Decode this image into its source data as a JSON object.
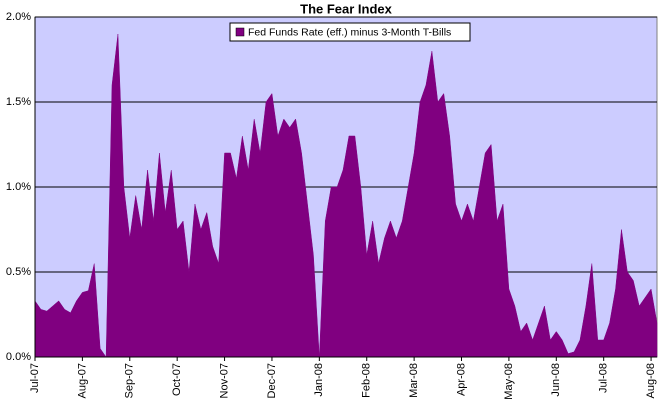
{
  "chart_data": {
    "type": "area",
    "title": "The Fear Index",
    "categories": [
      "Jul-07",
      null,
      null,
      null,
      null,
      null,
      null,
      null,
      "Aug-07",
      null,
      null,
      null,
      null,
      null,
      null,
      null,
      "Sep-07",
      null,
      null,
      null,
      null,
      null,
      null,
      null,
      "Oct-07",
      null,
      null,
      null,
      null,
      null,
      null,
      null,
      "Nov-07",
      null,
      null,
      null,
      null,
      null,
      null,
      null,
      "Dec-07",
      null,
      null,
      null,
      null,
      null,
      null,
      null,
      "Jan-08",
      null,
      null,
      null,
      null,
      null,
      null,
      null,
      "Feb-08",
      null,
      null,
      null,
      null,
      null,
      null,
      null,
      "Mar-08",
      null,
      null,
      null,
      null,
      null,
      null,
      null,
      "Apr-08",
      null,
      null,
      null,
      null,
      null,
      null,
      null,
      "May-08",
      null,
      null,
      null,
      null,
      null,
      null,
      null,
      "Jun-08",
      null,
      null,
      null,
      null,
      null,
      null,
      null,
      "Jul-08",
      null,
      null,
      null,
      null,
      null,
      null,
      null,
      "Aug-08",
      null
    ],
    "series": [
      {
        "name": "Fed Funds Rate (eff.) minus 3-Month T-Bills",
        "color": "#800080",
        "values": [
          0.33,
          0.28,
          0.27,
          0.3,
          0.33,
          0.28,
          0.26,
          0.33,
          0.38,
          0.39,
          0.55,
          0.05,
          0.0,
          1.6,
          1.9,
          1.0,
          0.7,
          0.95,
          0.75,
          1.1,
          0.8,
          1.2,
          0.85,
          1.1,
          0.75,
          0.8,
          0.5,
          0.9,
          0.75,
          0.85,
          0.65,
          0.55,
          1.2,
          1.2,
          1.05,
          1.3,
          1.1,
          1.4,
          1.2,
          1.5,
          1.55,
          1.3,
          1.4,
          1.35,
          1.4,
          1.2,
          0.9,
          0.6,
          0.0,
          0.8,
          1.0,
          1.0,
          1.1,
          1.3,
          1.3,
          1.0,
          0.6,
          0.8,
          0.55,
          0.7,
          0.8,
          0.7,
          0.8,
          1.0,
          1.2,
          1.5,
          1.6,
          1.8,
          1.5,
          1.55,
          1.3,
          0.9,
          0.8,
          0.9,
          0.8,
          1.0,
          1.2,
          1.25,
          0.8,
          0.9,
          0.4,
          0.3,
          0.15,
          0.2,
          0.1,
          0.2,
          0.3,
          0.1,
          0.15,
          0.1,
          0.02,
          0.03,
          0.1,
          0.3,
          0.55,
          0.1,
          0.1,
          0.2,
          0.4,
          0.75,
          0.5,
          0.45,
          0.3,
          0.35,
          0.4,
          0.2
        ]
      }
    ],
    "ylim": [
      0,
      2
    ],
    "yticks": [
      {
        "value": 0,
        "label": "0.0%"
      },
      {
        "value": 0.5,
        "label": "0.5%"
      },
      {
        "value": 1,
        "label": "1.0%"
      },
      {
        "value": 1.5,
        "label": "1.5%"
      },
      {
        "value": 2,
        "label": "2.0%"
      }
    ],
    "grid": true,
    "legend": "top",
    "background": "#ccccff"
  }
}
